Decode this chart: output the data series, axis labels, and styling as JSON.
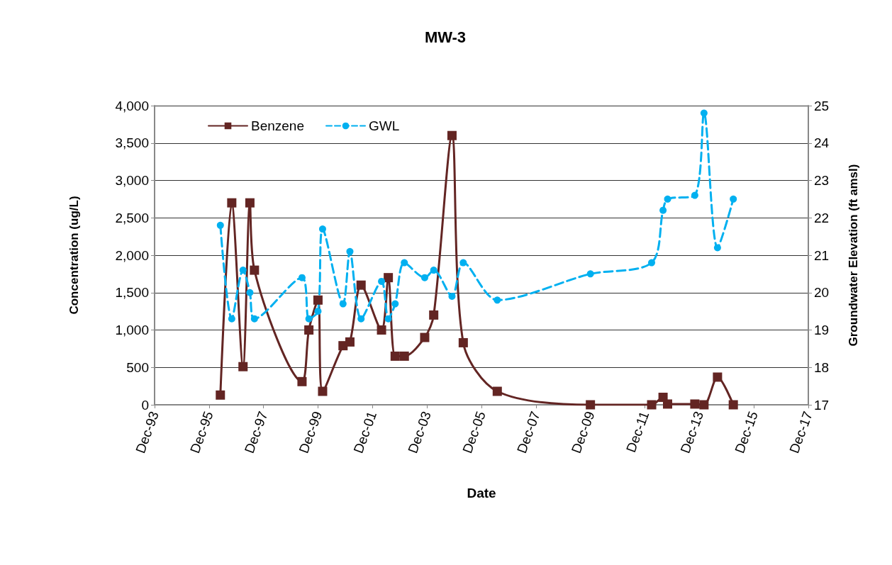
{
  "chart_data": {
    "type": "line",
    "title": "MW-3",
    "xlabel": "Date",
    "ylabel": "Concentration (ug/L)",
    "y2label": "Groundwater Elevation (ft amsl)",
    "x": [
      "1996-05",
      "1996-10",
      "1997-03",
      "1997-06",
      "1997-08",
      "1999-05",
      "1999-08",
      "1999-12",
      "2000-02",
      "2000-11",
      "2001-02",
      "2001-07",
      "2002-04",
      "2002-07",
      "2002-10",
      "2003-02",
      "2003-11",
      "2004-03",
      "2004-11",
      "2005-04",
      "2006-07",
      "2009-12",
      "2012-03",
      "2012-08",
      "2012-10",
      "2013-10",
      "2014-02",
      "2014-08",
      "2015-03"
    ],
    "series": [
      {
        "name": "Benzene",
        "color": "#632523",
        "marker": "square",
        "line_style": "solid",
        "values": [
          130,
          2700,
          510,
          2700,
          1800,
          310,
          1000,
          1400,
          180,
          790,
          840,
          1600,
          1000,
          1700,
          650,
          650,
          900,
          1200,
          3600,
          830,
          180,
          0,
          0,
          100,
          10,
          10,
          0,
          370,
          0
        ]
      },
      {
        "name": "GWL",
        "color": "#00b0f0",
        "marker": "circle",
        "line_style": "dashed",
        "axis": "y2",
        "values": [
          21.8,
          19.3,
          20.6,
          20.0,
          19.3,
          20.4,
          19.3,
          19.5,
          21.7,
          19.7,
          21.1,
          19.3,
          20.3,
          19.3,
          19.7,
          20.8,
          20.4,
          20.6,
          19.9,
          20.8,
          19.8,
          20.5,
          20.8,
          22.2,
          22.5,
          22.6,
          24.8,
          21.2,
          22.5
        ]
      }
    ],
    "xlim": [
      "1993-12",
      "2017-12"
    ],
    "xticks": [
      {
        "value": "1993-12",
        "label": "Dec-93"
      },
      {
        "value": "1995-12",
        "label": "Dec-95"
      },
      {
        "value": "1997-12",
        "label": "Dec-97"
      },
      {
        "value": "1999-12",
        "label": "Dec-99"
      },
      {
        "value": "2001-12",
        "label": "Dec-01"
      },
      {
        "value": "2003-12",
        "label": "Dec-03"
      },
      {
        "value": "2005-12",
        "label": "Dec-05"
      },
      {
        "value": "2007-12",
        "label": "Dec-07"
      },
      {
        "value": "2009-12",
        "label": "Dec-09"
      },
      {
        "value": "2011-12",
        "label": "Dec-11"
      },
      {
        "value": "2013-12",
        "label": "Dec-13"
      },
      {
        "value": "2015-12",
        "label": "Dec-15"
      },
      {
        "value": "2017-12",
        "label": "Dec-17"
      }
    ],
    "ylim": [
      0,
      4000
    ],
    "yticks": [
      {
        "value": 0,
        "label": "0"
      },
      {
        "value": 500,
        "label": "500"
      },
      {
        "value": 1000,
        "label": "1,000"
      },
      {
        "value": 1500,
        "label": "1,500"
      },
      {
        "value": 2000,
        "label": "2,000"
      },
      {
        "value": 2500,
        "label": "2,500"
      },
      {
        "value": 3000,
        "label": "3,000"
      },
      {
        "value": 3500,
        "label": "3,500"
      },
      {
        "value": 4000,
        "label": "4,000"
      }
    ],
    "y2lim": [
      17,
      25
    ],
    "y2ticks": [
      17,
      18,
      19,
      20,
      21,
      22,
      23,
      24,
      25
    ],
    "grid": "y",
    "legend": "top left"
  }
}
